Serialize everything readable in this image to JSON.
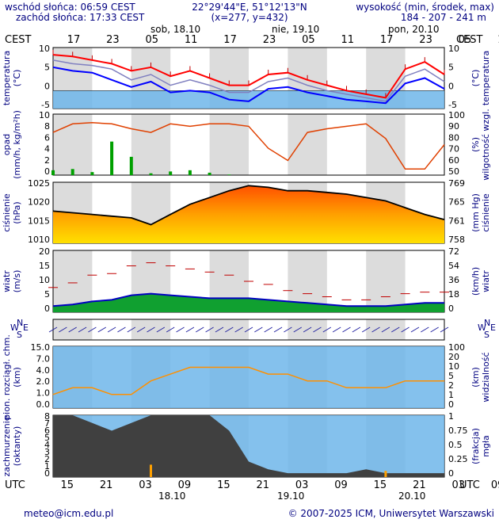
{
  "header": {
    "sunrise": "wschód słońca: 06:59 CEST",
    "sunset": "zachód słońca: 17:33 CEST",
    "coords": "22°29'44\"E, 51°12'13\"N",
    "grid": "(x=277, y=432)",
    "elev_label": "wysokość (min, środek, max)",
    "elev_values": "184 - 207 - 241 m"
  },
  "top_axis": {
    "tz": "CEST",
    "hours": [
      "17",
      "23",
      "05",
      "11",
      "17",
      "23",
      "05",
      "11",
      "17",
      "23",
      "05",
      "11",
      "17"
    ],
    "days": [
      "sob, 18.10",
      "nie, 19.10",
      "pon, 20.10"
    ]
  },
  "bottom_axis": {
    "tz": "UTC",
    "hours": [
      "15",
      "21",
      "03",
      "09",
      "15",
      "21",
      "03",
      "09",
      "15",
      "21",
      "03",
      "09",
      "15"
    ],
    "dates": [
      "18.10",
      "19.10",
      "20.10"
    ]
  },
  "panels": {
    "temperature": {
      "left_label": [
        "temperatura",
        "(°C)"
      ],
      "right_label": [
        "(°C)",
        "temperatura"
      ],
      "ticks": [
        "10",
        "5",
        "0",
        "-5"
      ]
    },
    "precip": {
      "left_label": [
        "opad",
        "(mm/h, kg/m²h)"
      ],
      "right_label": [
        "(%)",
        "wilgotność wzgl."
      ],
      "left_ticks": [
        "10",
        "8",
        "6",
        "4",
        "2",
        "0"
      ],
      "right_ticks": [
        "100",
        "90",
        "80",
        "70",
        "60",
        "50"
      ]
    },
    "pressure": {
      "left_label": [
        "ciśnienie",
        "(hPa)"
      ],
      "right_label": [
        "(mm Hg)",
        "ciśnienie"
      ],
      "left_ticks": [
        "1025",
        "1020",
        "1015",
        "1010"
      ],
      "right_ticks": [
        "769",
        "765",
        "761",
        "758"
      ]
    },
    "wind": {
      "left_label": [
        "wiatr",
        "(m/s)"
      ],
      "right_label": [
        "(km/h)",
        "wiatr"
      ],
      "left_ticks": [
        "20",
        "15",
        "10",
        "5",
        "0"
      ],
      "right_ticks": [
        "72",
        "54",
        "36",
        "18",
        "0"
      ]
    },
    "winddir": {
      "compass": [
        "N",
        "W",
        "E",
        "S"
      ]
    },
    "clouds": {
      "left_label": [
        "pion. rozciągł. chm.",
        "(km)"
      ],
      "right_label": [
        "(km)",
        "widzialność"
      ],
      "left_ticks": [
        "15.0",
        "7.0",
        "4.0",
        "2.0",
        "1.0",
        "0.0"
      ],
      "right_ticks": [
        "100",
        "20",
        "10",
        "5",
        "2",
        "1",
        "0"
      ]
    },
    "cover": {
      "left_label": [
        "zachmurzenie",
        "(oktanty)"
      ],
      "right_label": [
        "(frakcja)",
        "mgła"
      ],
      "left_ticks": [
        "8",
        "7",
        "6",
        "5",
        "4",
        "3",
        "2",
        "1",
        "0"
      ],
      "right_ticks": [
        "1",
        "0.75",
        "0.5",
        "0.25",
        "0"
      ]
    }
  },
  "footer": {
    "email": "meteo@icm.edu.pl",
    "copyright": "© 2007-2025 ICM, Uniwersytet Warszawski"
  },
  "chart_data": {
    "type": "line",
    "x_hours_from_start": [
      0,
      3,
      6,
      9,
      12,
      15,
      18,
      21,
      24,
      27,
      30,
      33,
      36,
      39,
      42,
      45,
      48,
      51,
      54,
      57,
      60
    ],
    "temperature": {
      "ylim": [
        -5,
        12
      ],
      "series": [
        {
          "name": "max",
          "values": [
            10.0,
            9.5,
            8.5,
            7.5,
            5.5,
            6.5,
            4.0,
            5.5,
            3.5,
            1.5,
            1.5,
            4.5,
            5.0,
            3.0,
            1.5,
            0.0,
            -1.0,
            -2.0,
            6.0,
            8.0,
            4.5
          ]
        },
        {
          "name": "mean",
          "values": [
            8.5,
            7.5,
            7.0,
            6.0,
            3.0,
            4.5,
            1.5,
            3.0,
            1.5,
            -0.5,
            -0.5,
            2.5,
            3.5,
            1.5,
            0.0,
            -1.0,
            -2.0,
            -3.0,
            4.0,
            6.0,
            2.5
          ]
        },
        {
          "name": "min",
          "values": [
            6.5,
            5.5,
            5.0,
            3.0,
            1.0,
            2.5,
            -0.5,
            0.0,
            -0.5,
            -2.5,
            -3.0,
            0.5,
            1.0,
            -0.5,
            -1.5,
            -2.5,
            -3.0,
            -3.5,
            2.0,
            3.5,
            0.5
          ]
        }
      ]
    },
    "humidity": {
      "ylim": [
        50,
        100
      ],
      "values": [
        85,
        92,
        93,
        92,
        88,
        85,
        92,
        90,
        92,
        92,
        90,
        72,
        62,
        85,
        88,
        90,
        92,
        80,
        55,
        55,
        75
      ]
    },
    "precipitation": {
      "ylim": [
        0,
        10
      ],
      "values": [
        0.8,
        1.0,
        0.5,
        5.5,
        3.0,
        0.3,
        0.6,
        0.8,
        0.4,
        0.1,
        0,
        0,
        0,
        0,
        0,
        0,
        0,
        0,
        0,
        0,
        0
      ]
    },
    "pressure": {
      "ylim": [
        1008,
        1026
      ],
      "values": [
        1017.5,
        1017,
        1016.5,
        1016,
        1015.5,
        1013.5,
        1016.5,
        1019.5,
        1021.5,
        1023.5,
        1025,
        1024.5,
        1023.5,
        1023.5,
        1023,
        1022.5,
        1021.5,
        1020.5,
        1018.5,
        1016.5,
        1015
      ]
    },
    "wind": {
      "ylim": [
        0,
        20
      ],
      "series": [
        {
          "name": "gusts",
          "values": [
            8,
            9.5,
            12,
            12.5,
            15,
            16,
            15,
            14,
            13,
            12,
            10,
            9,
            7,
            6,
            5,
            4,
            4,
            5,
            6,
            6.5,
            6.5
          ]
        },
        {
          "name": "mean",
          "values": [
            2,
            2.5,
            3.5,
            4,
            5.5,
            6,
            5.5,
            5,
            4.5,
            4.5,
            4.5,
            4,
            3.5,
            3,
            2.5,
            2,
            2,
            2,
            2.5,
            3,
            3
          ]
        }
      ]
    },
    "visibility_km": {
      "ylim": [
        0,
        100
      ],
      "values": [
        10,
        15,
        15,
        10,
        10,
        20,
        25,
        30,
        30,
        30,
        30,
        25,
        25,
        20,
        20,
        15,
        15,
        15,
        20,
        20,
        20
      ]
    },
    "cloud_cover_octants": {
      "ylim": [
        0,
        8
      ],
      "values": [
        8,
        8,
        7,
        6,
        7,
        8,
        8,
        8,
        8,
        6,
        2,
        1,
        0.5,
        0.5,
        0.5,
        0.5,
        1,
        0.5,
        0.5,
        0.5,
        0.5
      ]
    },
    "fog_fraction": {
      "ylim": [
        0,
        1
      ],
      "values": [
        0,
        0,
        0,
        0,
        0,
        0.2,
        0,
        0,
        0,
        0,
        0,
        0,
        0,
        0,
        0,
        0,
        0,
        0.1,
        0,
        0,
        0
      ]
    }
  }
}
